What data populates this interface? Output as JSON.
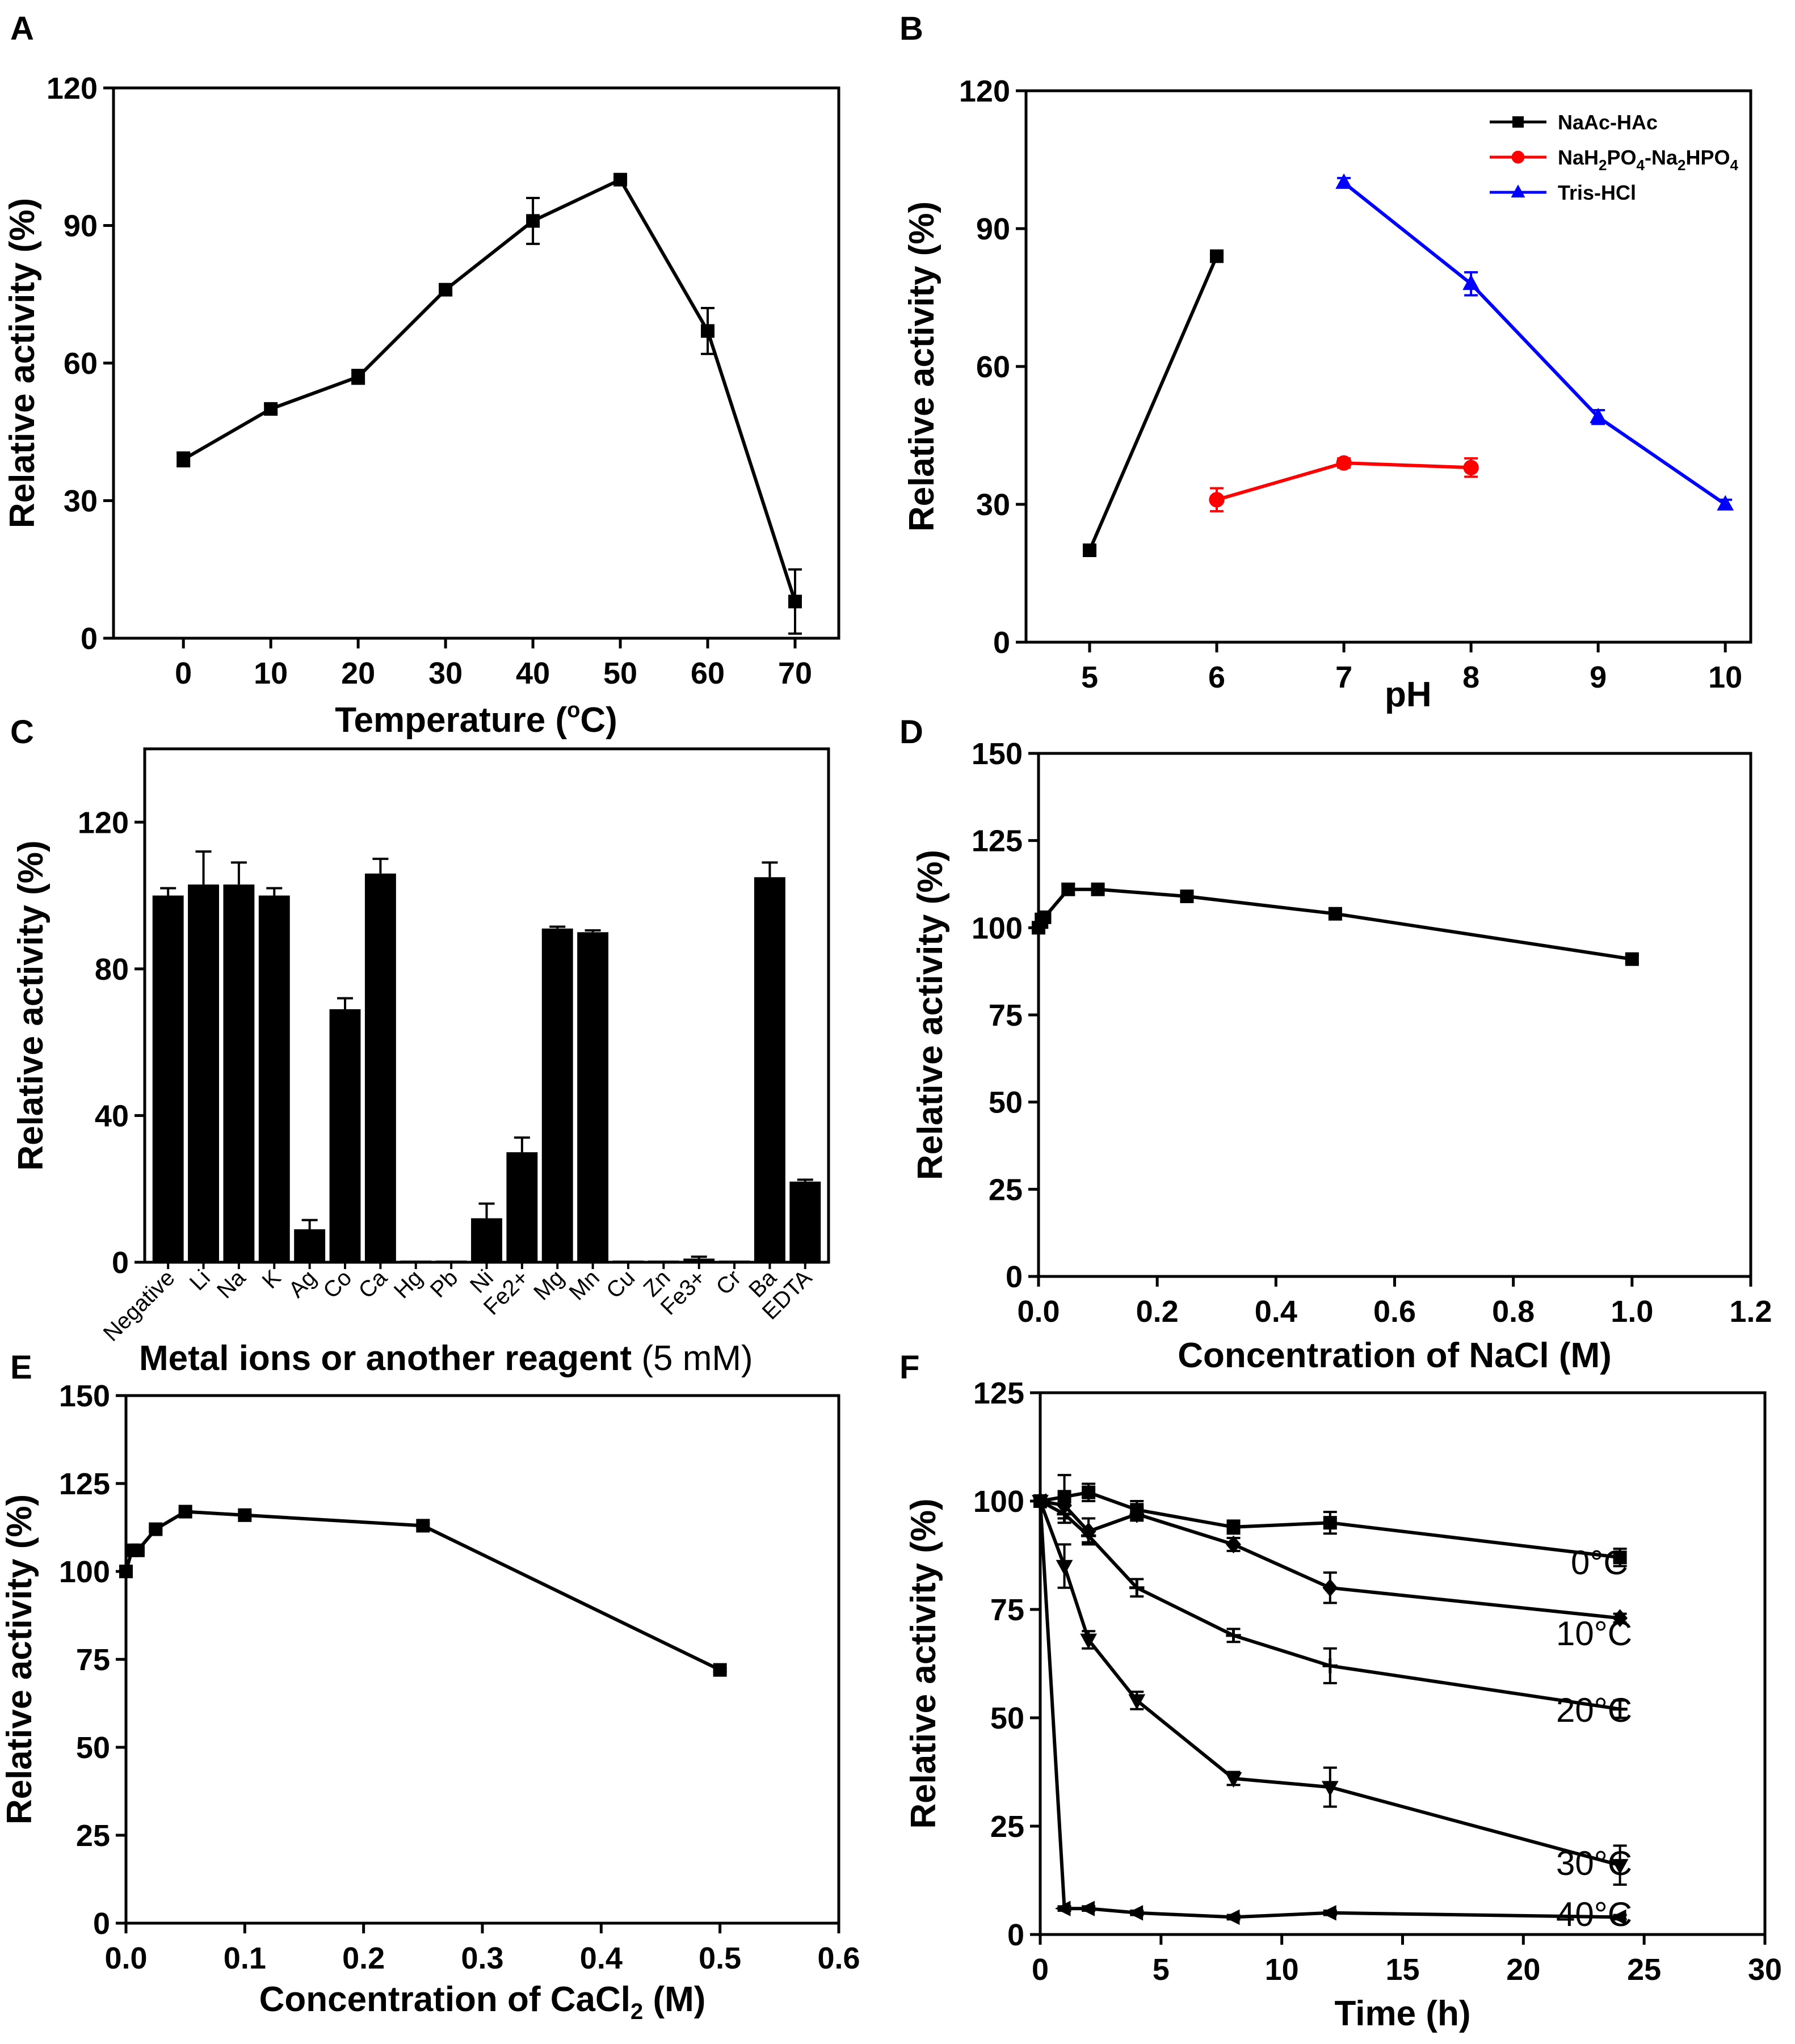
{
  "figure": {
    "panels": {
      "A": "A",
      "B": "B",
      "C": "C",
      "D": "D",
      "E": "E",
      "F": "F"
    }
  },
  "chart_data": [
    {
      "id": "A",
      "type": "line",
      "panel_label": "A",
      "xlabel": "Temperature (°C)",
      "ylabel": "Relative activity (%)",
      "xlim": [
        -8,
        75
      ],
      "ylim": [
        0,
        120
      ],
      "xticks": [
        0,
        10,
        20,
        30,
        40,
        50,
        60,
        70
      ],
      "yticks": [
        0,
        30,
        60,
        90,
        120
      ],
      "color": "#000000",
      "series": [
        {
          "name": "activity",
          "x": [
            0,
            10,
            20,
            30,
            40,
            50,
            60,
            70
          ],
          "y": [
            39,
            50,
            57,
            76,
            91,
            100,
            67,
            8
          ],
          "err": [
            1.5,
            1,
            1.5,
            1,
            5,
            0.5,
            5,
            7
          ],
          "marker": "square",
          "color": "#000000"
        }
      ]
    },
    {
      "id": "B",
      "type": "line",
      "panel_label": "B",
      "xlabel": "pH",
      "ylabel": "Relative activity (%)",
      "xlim": [
        4.5,
        10.2
      ],
      "ylim": [
        0,
        120
      ],
      "xticks": [
        5,
        6,
        7,
        8,
        9,
        10
      ],
      "yticks": [
        0,
        30,
        60,
        90,
        120
      ],
      "legend_position": "top-right",
      "series": [
        {
          "name": "NaAc-HAc",
          "x": [
            5,
            6
          ],
          "y": [
            20,
            84
          ],
          "err": [
            0.5,
            0.5
          ],
          "marker": "square",
          "color": "#000000"
        },
        {
          "name": "NaH2PO4-Na2HPO4",
          "legend_parts": [
            "NaH",
            "2",
            "PO",
            "4",
            "-Na",
            "2",
            "HPO",
            "4"
          ],
          "x": [
            6,
            7,
            8
          ],
          "y": [
            31,
            39,
            38
          ],
          "err": [
            2.5,
            1,
            2
          ],
          "marker": "circle",
          "color": "#ff0000"
        },
        {
          "name": "Tris-HCl",
          "x": [
            7,
            8,
            9,
            10
          ],
          "y": [
            100,
            78,
            49,
            30
          ],
          "err": [
            1,
            2.5,
            1.5,
            1
          ],
          "marker": "triangle",
          "color": "#0000ff"
        }
      ]
    },
    {
      "id": "C",
      "type": "bar",
      "panel_label": "C",
      "xlabel": "Metal ions or another reagent",
      "xlabel_suffix": "(5 mM)",
      "ylabel": "Relative activity (%)",
      "ylim": [
        0,
        140
      ],
      "yticks": [
        0,
        40,
        80,
        120
      ],
      "categories": [
        "Negative",
        "Li",
        "Na",
        "K",
        "Ag",
        "Co",
        "Ca",
        "Hg",
        "Pb",
        "Ni",
        "Fe2+",
        "Mg",
        "Mn",
        "Cu",
        "Zn",
        "Fe3+",
        "Cr",
        "Ba",
        "EDTA"
      ],
      "values": [
        100,
        103,
        103,
        100,
        9,
        69,
        106,
        0,
        0,
        12,
        30,
        91,
        90,
        0,
        0,
        1,
        0,
        105,
        22
      ],
      "err": [
        2,
        9,
        6,
        2,
        2.5,
        3,
        4,
        0,
        0,
        4,
        4,
        0.5,
        0.5,
        0,
        0,
        0.5,
        0,
        4,
        0.5
      ],
      "color": "#000000"
    },
    {
      "id": "D",
      "type": "line",
      "panel_label": "D",
      "xlabel": "Concentration of NaCl (M)",
      "ylabel": "Relative activity (%)",
      "xlim": [
        0,
        1.2
      ],
      "ylim": [
        0,
        150
      ],
      "xticks": [
        0.0,
        0.2,
        0.4,
        0.6,
        0.8,
        1.0,
        1.2
      ],
      "yticks": [
        0,
        25,
        50,
        75,
        100,
        125,
        150
      ],
      "series": [
        {
          "name": "activity",
          "x": [
            0,
            0.005,
            0.01,
            0.05,
            0.1,
            0.25,
            0.5,
            1.0
          ],
          "y": [
            100,
            102,
            103,
            111,
            111,
            109,
            104,
            91
          ],
          "err": [
            1,
            2,
            1,
            1.5,
            1,
            1,
            1,
            1
          ],
          "marker": "square",
          "color": "#000000"
        }
      ]
    },
    {
      "id": "E",
      "type": "line",
      "panel_label": "E",
      "xlabel": "Concentration of CaCl",
      "xlabel_sub": "2",
      "xlabel_suffix": "(M)",
      "ylabel": "Relative activity (%)",
      "xlim": [
        0,
        0.6
      ],
      "ylim": [
        0,
        150
      ],
      "xticks": [
        0.0,
        0.1,
        0.2,
        0.3,
        0.4,
        0.5,
        0.6
      ],
      "yticks": [
        0,
        25,
        50,
        75,
        100,
        125,
        150
      ],
      "series": [
        {
          "name": "activity",
          "x": [
            0,
            0.005,
            0.01,
            0.025,
            0.05,
            0.1,
            0.25,
            0.5
          ],
          "y": [
            100,
            106,
            106,
            112,
            117,
            116,
            113,
            72
          ],
          "err": [
            0.5,
            0.5,
            0.5,
            0.5,
            0.5,
            0.5,
            0.5,
            0.5
          ],
          "marker": "square",
          "color": "#000000"
        }
      ]
    },
    {
      "id": "F",
      "type": "line",
      "panel_label": "F",
      "xlabel": "Time (h)",
      "ylabel": "Relative activity (%)",
      "xlim": [
        0,
        30
      ],
      "ylim": [
        0,
        125
      ],
      "xticks": [
        0,
        5,
        10,
        15,
        20,
        25,
        30
      ],
      "yticks": [
        0,
        25,
        50,
        75,
        100,
        125
      ],
      "series": [
        {
          "name": "0°C",
          "x": [
            0,
            1,
            2,
            4,
            8,
            12,
            24
          ],
          "y": [
            100,
            101,
            102,
            98,
            94,
            95,
            87
          ],
          "err": [
            0.5,
            5,
            2,
            2,
            1.5,
            2.5,
            2
          ],
          "marker": "square"
        },
        {
          "name": "10°C",
          "x": [
            0,
            1,
            2,
            4,
            8,
            12,
            24
          ],
          "y": [
            100,
            99,
            93,
            97,
            90,
            80,
            73
          ],
          "err": [
            0.5,
            2,
            3,
            1.5,
            1.5,
            3.5,
            1
          ],
          "marker": "diamond"
        },
        {
          "name": "20°C",
          "x": [
            0,
            1,
            2,
            4,
            8,
            12,
            24
          ],
          "y": [
            100,
            97,
            92,
            80,
            69,
            62,
            52
          ],
          "err": [
            0.5,
            2,
            1.5,
            2,
            1.5,
            4,
            2
          ],
          "marker": "plus"
        },
        {
          "name": "30°C",
          "x": [
            0,
            1,
            2,
            4,
            8,
            12,
            24
          ],
          "y": [
            100,
            85,
            68,
            54,
            36,
            34,
            16
          ],
          "err": [
            0.5,
            5,
            2,
            2,
            1.5,
            4.5,
            4.5
          ],
          "marker": "tri-down"
        },
        {
          "name": "40°C",
          "x": [
            0,
            1,
            2,
            4,
            8,
            12,
            24
          ],
          "y": [
            100,
            6,
            6,
            5,
            4,
            5,
            4
          ],
          "err": [
            0.5,
            0.5,
            0.5,
            0.5,
            0.5,
            0.5,
            0.5
          ],
          "marker": "tri-left"
        }
      ],
      "annotations": [
        "0°C",
        "10°C",
        "20°C",
        "30°C",
        "40°C"
      ]
    }
  ]
}
